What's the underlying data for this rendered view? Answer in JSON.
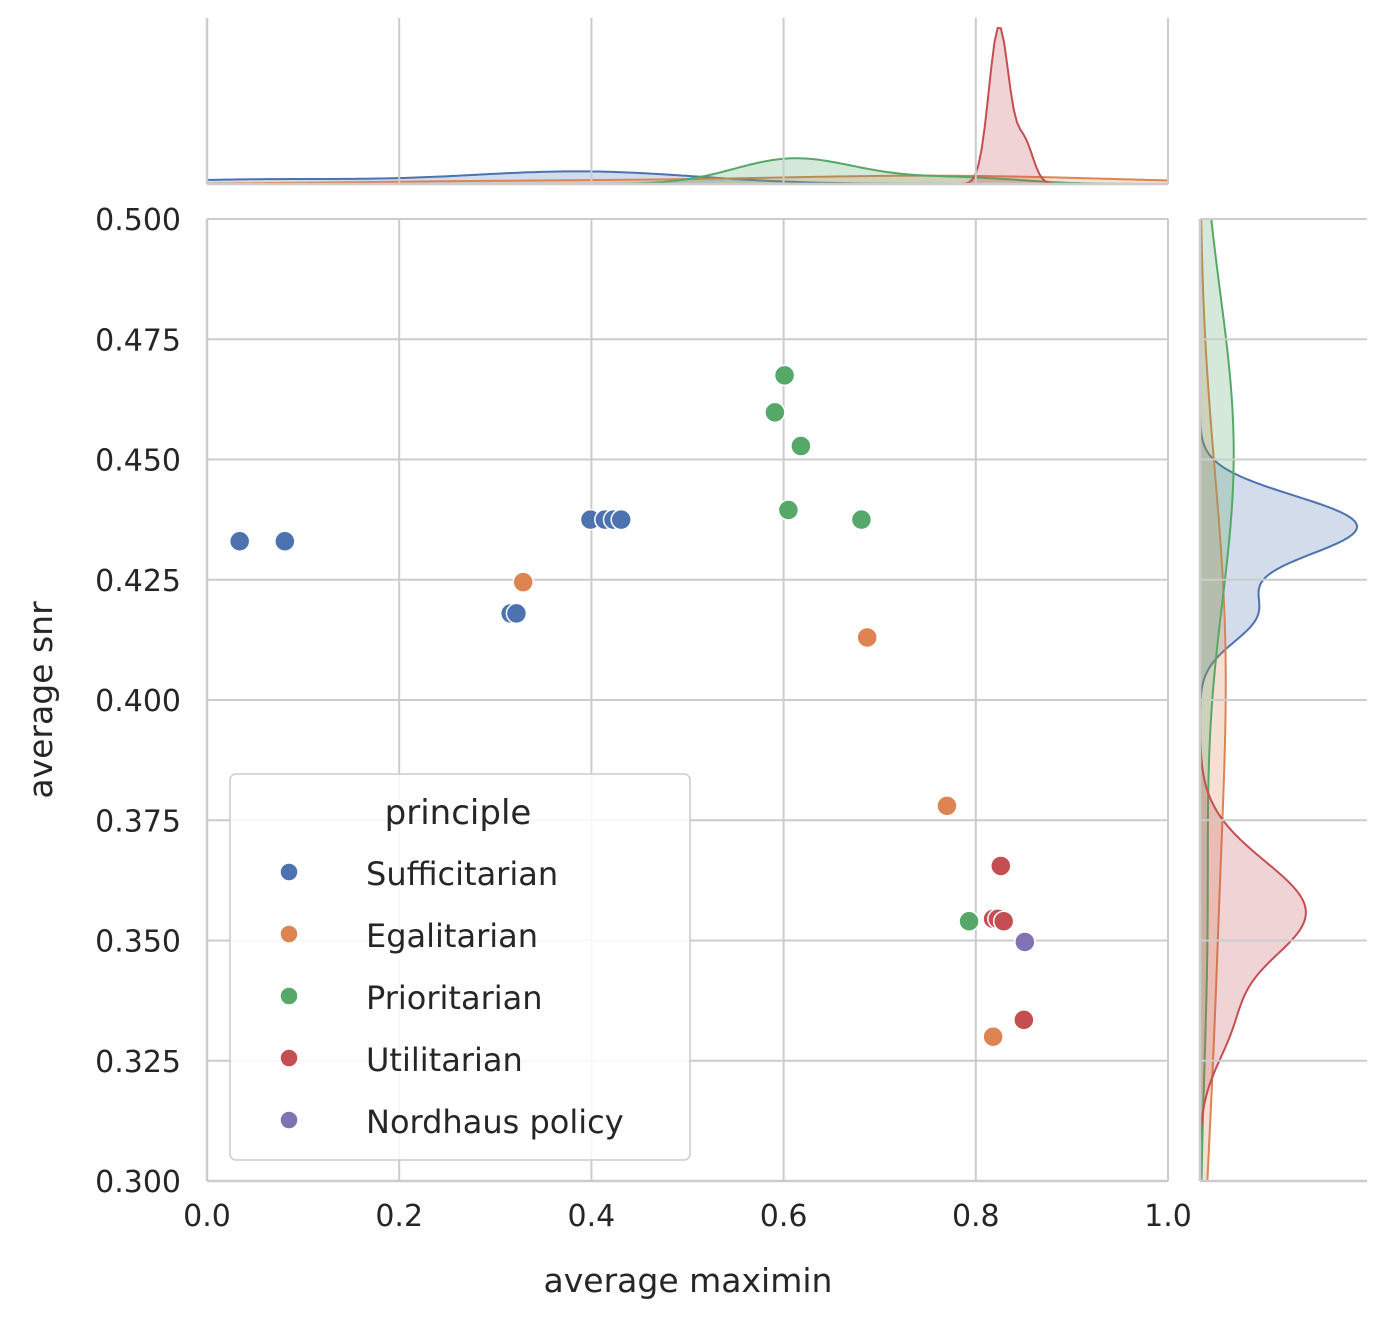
{
  "chart_data": {
    "type": "scatter",
    "title": "",
    "xlabel": "average maximin",
    "ylabel": "average snr",
    "xlim": [
      0.0,
      1.0
    ],
    "ylim": [
      0.3,
      0.5
    ],
    "x_ticks": [
      "0.0",
      "0.2",
      "0.4",
      "0.6",
      "0.8",
      "1.0"
    ],
    "x_tick_values": [
      0.0,
      0.2,
      0.4,
      0.6,
      0.8,
      1.0
    ],
    "y_ticks": [
      "0.300",
      "0.325",
      "0.350",
      "0.375",
      "0.400",
      "0.425",
      "0.450",
      "0.475",
      "0.500"
    ],
    "y_tick_values": [
      0.3,
      0.325,
      0.35,
      0.375,
      0.4,
      0.425,
      0.45,
      0.475,
      0.5
    ],
    "grid": true,
    "marginals": "kde",
    "legend": {
      "title": "principle",
      "placement": "lower-left"
    },
    "series": [
      {
        "name": "Sufficitarian",
        "color": "#4c72b0",
        "points": [
          [
            0.034,
            0.433
          ],
          [
            0.081,
            0.433
          ],
          [
            0.316,
            0.418
          ],
          [
            0.322,
            0.418
          ],
          [
            0.399,
            0.4375
          ],
          [
            0.414,
            0.4375
          ],
          [
            0.423,
            0.4375
          ],
          [
            0.431,
            0.4375
          ]
        ]
      },
      {
        "name": "Egalitarian",
        "color": "#dd8452",
        "points": [
          [
            0.329,
            0.4245
          ],
          [
            0.687,
            0.413
          ],
          [
            0.77,
            0.378
          ],
          [
            0.818,
            0.33
          ]
        ]
      },
      {
        "name": "Prioritarian",
        "color": "#55a868",
        "points": [
          [
            0.601,
            0.4675
          ],
          [
            0.591,
            0.4598
          ],
          [
            0.618,
            0.4528
          ],
          [
            0.605,
            0.4395
          ],
          [
            0.681,
            0.4375
          ],
          [
            0.793,
            0.354
          ]
        ]
      },
      {
        "name": "Utilitarian",
        "color": "#c44e52",
        "points": [
          [
            0.826,
            0.3655
          ],
          [
            0.818,
            0.3545
          ],
          [
            0.823,
            0.3545
          ],
          [
            0.829,
            0.354
          ],
          [
            0.85,
            0.3335
          ]
        ]
      },
      {
        "name": "Nordhaus policy",
        "color": "#8172b3",
        "points": [
          [
            0.851,
            0.3497
          ]
        ]
      }
    ]
  }
}
